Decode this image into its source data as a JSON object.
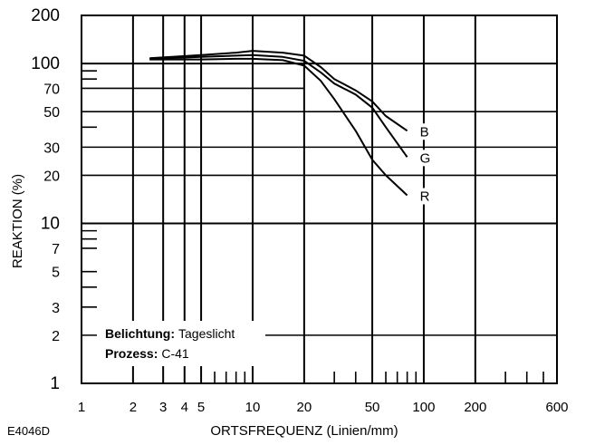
{
  "chart_data": {
    "type": "line",
    "xlabel": "ORTSFREQUENZ (Linien/mm)",
    "ylabel": "REAKTION (%)",
    "x_scale": "log",
    "y_scale": "log",
    "xlim": [
      1,
      600
    ],
    "ylim": [
      1,
      200
    ],
    "x_ticks": [
      {
        "value": 1,
        "label": "1"
      },
      {
        "value": 2,
        "label": "2"
      },
      {
        "value": 3,
        "label": "3"
      },
      {
        "value": 4,
        "label": "4"
      },
      {
        "value": 5,
        "label": "5"
      },
      {
        "value": 10,
        "label": "10"
      },
      {
        "value": 20,
        "label": "20"
      },
      {
        "value": 50,
        "label": "50"
      },
      {
        "value": 100,
        "label": "100"
      },
      {
        "value": 200,
        "label": "200"
      },
      {
        "value": 600,
        "label": "600"
      }
    ],
    "y_ticks": [
      {
        "value": 1,
        "label": "1",
        "big": true
      },
      {
        "value": 2,
        "label": "2"
      },
      {
        "value": 3,
        "label": "3"
      },
      {
        "value": 5,
        "label": "5"
      },
      {
        "value": 7,
        "label": "7"
      },
      {
        "value": 10,
        "label": "10",
        "big": true
      },
      {
        "value": 20,
        "label": "20"
      },
      {
        "value": 30,
        "label": "30"
      },
      {
        "value": 50,
        "label": "50"
      },
      {
        "value": 70,
        "label": "70"
      },
      {
        "value": 100,
        "label": "100",
        "big": true
      },
      {
        "value": 200,
        "label": "200",
        "big": true
      }
    ],
    "major_gridlines_x": [
      2,
      3,
      4,
      5,
      10,
      20,
      50,
      100,
      200
    ],
    "major_gridlines_y": [
      10,
      100
    ],
    "series": [
      {
        "name": "B",
        "x": [
          2.5,
          5,
          8,
          10,
          15,
          20,
          25,
          30,
          40,
          50,
          60,
          80
        ],
        "y": [
          108,
          113,
          117,
          120,
          117,
          112,
          95,
          80,
          68,
          58,
          47,
          38
        ]
      },
      {
        "name": "G",
        "x": [
          2.5,
          5,
          8,
          10,
          15,
          20,
          25,
          30,
          40,
          50,
          60,
          80
        ],
        "y": [
          107,
          110,
          112,
          113,
          110,
          104,
          88,
          75,
          64,
          53,
          40,
          26
        ]
      },
      {
        "name": "R",
        "x": [
          2.5,
          5,
          8,
          10,
          15,
          20,
          25,
          30,
          40,
          50,
          60,
          80
        ],
        "y": [
          106,
          106,
          107,
          107,
          105,
          97,
          78,
          60,
          38,
          25,
          20,
          15
        ]
      }
    ],
    "annotations": {
      "exposure_key": "Belichtung:",
      "exposure_value": "Tageslicht",
      "process_key": "Prozess:",
      "process_value": "C-41"
    },
    "figure_code": "E4046D",
    "grid": true
  }
}
